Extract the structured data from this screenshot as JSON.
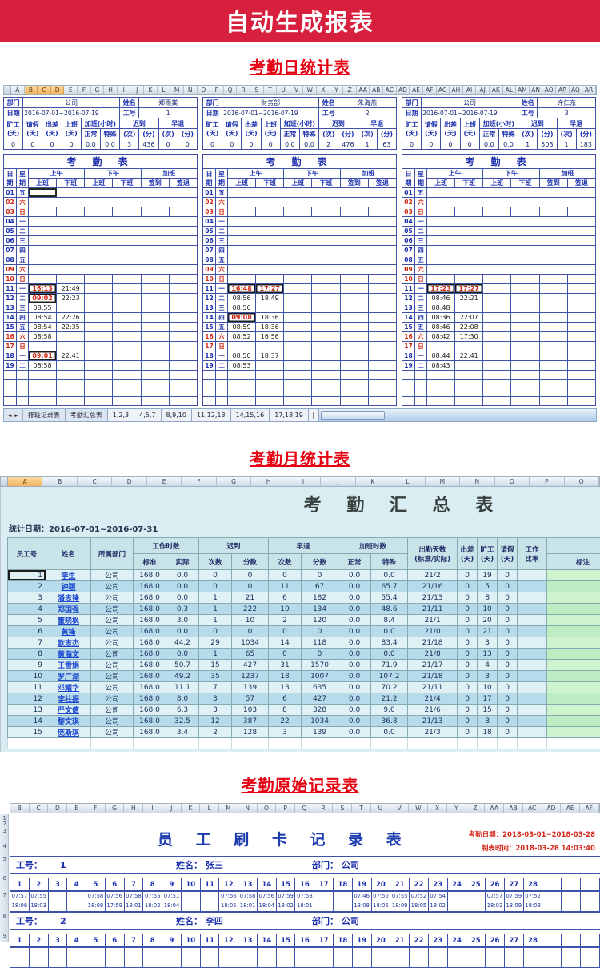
{
  "banner": {
    "title": "自动生成报表"
  },
  "colors": {
    "banner_red": "#d6203e",
    "section_title_red": "#e60012",
    "grid_navy": "#3f51a5",
    "label_blue": "#1b2fae",
    "late_red": "#d02614",
    "link_blue": "#1a46cf",
    "monthly_bg": "#d9edf2",
    "note_green": "#cdf4cf",
    "raw_red": "#d42a1e"
  },
  "daily": {
    "section_title": "考勤日统计表",
    "columns": [
      "A",
      "B",
      "C",
      "D",
      "E",
      "F",
      "G",
      "H",
      "I",
      "J",
      "K",
      "L",
      "M",
      "N",
      "O",
      "P",
      "Q",
      "R",
      "S",
      "T",
      "U",
      "V",
      "W",
      "X",
      "Y",
      "Z",
      "AA",
      "AB",
      "AC",
      "AD",
      "AE",
      "AF",
      "AG",
      "AH",
      "AI",
      "AJ",
      "AK",
      "AL",
      "AM",
      "AN",
      "AO",
      "AP",
      "AQ",
      "AR"
    ],
    "highlighted_columns": [
      "B",
      "C",
      "D"
    ],
    "labels": {
      "dept": "部门",
      "name": "姓名",
      "date": "日期",
      "emp_id": "工号",
      "stat_singles": [
        [
          "旷工",
          "(天)"
        ],
        [
          "请假",
          "(天)"
        ],
        [
          "出差",
          "(天)"
        ],
        [
          "上班",
          "(天)"
        ]
      ],
      "stat_groups": [
        {
          "label": "加班(小时)",
          "subs": [
            "正常",
            "特殊"
          ]
        },
        {
          "label": "迟到",
          "subs": [
            "(次)",
            "(分)"
          ]
        },
        {
          "label": "早退",
          "subs": [
            "(次)",
            "(分)"
          ]
        }
      ]
    },
    "attendance": {
      "title": "考 勤 表",
      "day_col": [
        "日",
        "期"
      ],
      "week_col": [
        "星",
        "期"
      ],
      "groups": [
        {
          "label": "上午",
          "subs": [
            "上班",
            "下班"
          ]
        },
        {
          "label": "下午",
          "subs": [
            "上班",
            "下班"
          ]
        },
        {
          "label": "加班",
          "subs": [
            "签到",
            "签退"
          ]
        }
      ],
      "days": [
        {
          "d": "01",
          "w": "五",
          "red": false,
          "grid": false
        },
        {
          "d": "02",
          "w": "六",
          "red": true,
          "grid": false
        },
        {
          "d": "03",
          "w": "日",
          "red": true,
          "grid": true
        },
        {
          "d": "04",
          "w": "一",
          "red": false,
          "grid": false
        },
        {
          "d": "05",
          "w": "二",
          "red": false,
          "grid": false
        },
        {
          "d": "06",
          "w": "三",
          "red": false,
          "grid": false
        },
        {
          "d": "07",
          "w": "四",
          "red": false,
          "grid": false
        },
        {
          "d": "08",
          "w": "五",
          "red": false,
          "grid": false
        },
        {
          "d": "09",
          "w": "六",
          "red": true,
          "grid": false
        },
        {
          "d": "10",
          "w": "日",
          "red": true,
          "grid": true
        },
        {
          "d": "11",
          "w": "一",
          "red": false,
          "grid": true
        },
        {
          "d": "12",
          "w": "二",
          "red": false,
          "grid": true
        },
        {
          "d": "13",
          "w": "三",
          "red": false,
          "grid": true
        },
        {
          "d": "14",
          "w": "四",
          "red": false,
          "grid": true
        },
        {
          "d": "15",
          "w": "五",
          "red": false,
          "grid": true
        },
        {
          "d": "16",
          "w": "六",
          "red": true,
          "grid": true
        },
        {
          "d": "17",
          "w": "日",
          "red": true,
          "grid": true
        },
        {
          "d": "18",
          "w": "一",
          "red": false,
          "grid": true
        },
        {
          "d": "19",
          "w": "二",
          "red": false,
          "grid": true
        }
      ],
      "empty_rows": 4
    },
    "panels": [
      {
        "dept": "公司",
        "name": "郑雨棠",
        "date": "2016-07-01~2016-07-19",
        "emp_id": "1",
        "stats": [
          "0",
          "0",
          "0",
          "0",
          "0.0",
          "0.0",
          "3",
          "436",
          "0",
          "0"
        ],
        "active_cell": true,
        "times": {
          "11": [
            "16:13*",
            "21:49"
          ],
          "12": [
            "09:02*",
            "22:23"
          ],
          "13": [
            "08:55",
            ""
          ],
          "14": [
            "08:54",
            "22:26"
          ],
          "15": [
            "08:54",
            "22:35"
          ],
          "16": [
            "08:58",
            ""
          ],
          "18": [
            "09:01*",
            "22:41"
          ],
          "19": [
            "08:58",
            ""
          ]
        }
      },
      {
        "dept": "财务部",
        "name": "朱海燕",
        "date": "2016-07-01~2016-07-19",
        "emp_id": "2",
        "stats": [
          "0",
          "0",
          "0",
          "0",
          "0.0",
          "0.0",
          "2",
          "476",
          "1",
          "63"
        ],
        "active_cell": false,
        "times": {
          "11": [
            "16:48*",
            "17:27*"
          ],
          "12": [
            "08:56",
            "18:49"
          ],
          "13": [
            "08:56",
            ""
          ],
          "14": [
            "09:08*",
            "18:36"
          ],
          "15": [
            "08:59",
            "18:36"
          ],
          "16": [
            "08:52",
            "16:56"
          ],
          "18": [
            "08:50",
            "18:37"
          ],
          "19": [
            "08:53",
            ""
          ]
        }
      },
      {
        "dept": "公司",
        "name": "许仁东",
        "date": "2016-07-01~2016-07-19",
        "emp_id": "3",
        "stats": [
          "0",
          "0",
          "0",
          "0",
          "0.0",
          "0.0",
          "1",
          "503",
          "1",
          "183"
        ],
        "active_cell": false,
        "times": {
          "11": [
            "17:23*",
            "17:27*"
          ],
          "12": [
            "08:46",
            "22:21"
          ],
          "13": [
            "08:48",
            ""
          ],
          "14": [
            "08:36",
            "22:07"
          ],
          "15": [
            "08:46",
            "22:08"
          ],
          "16": [
            "08:42",
            "17:30"
          ],
          "18": [
            "08:44",
            "22:41"
          ],
          "19": [
            "08:43",
            ""
          ]
        }
      }
    ],
    "sheet_tabs": {
      "nav_icons": [
        "◄",
        "►"
      ],
      "tabs": [
        "排班记录表",
        "考勤汇总表",
        "1,2,3",
        "4,5,7",
        "8,9,10",
        "11,12,13",
        "14,15,16",
        "17,18,19"
      ]
    }
  },
  "monthly": {
    "section_title": "考勤月统计表",
    "columns": [
      "A",
      "B",
      "C",
      "D",
      "E",
      "F",
      "G",
      "H",
      "I",
      "J",
      "K",
      "L",
      "M",
      "N",
      "O",
      "P",
      "Q"
    ],
    "highlighted_columns": [
      "A"
    ],
    "title": "考 勤 汇 总 表",
    "stat_date": "统计日期：2016-07-01~2016-07-31",
    "header": {
      "emp_id": "员工号",
      "name": "姓名",
      "dept": "所属部门",
      "groups": [
        {
          "label": "工作时数",
          "subs": [
            "标准",
            "实际"
          ]
        },
        {
          "label": "迟到",
          "subs": [
            "次数",
            "分数"
          ]
        },
        {
          "label": "早退",
          "subs": [
            "次数",
            "分数"
          ]
        },
        {
          "label": "加班时数",
          "subs": [
            "正常",
            "特殊"
          ]
        }
      ],
      "attendance_days": [
        "出勤天数",
        "(标准/实际)"
      ],
      "trip": [
        "出差",
        "(天)"
      ],
      "absent": [
        "旷工",
        "(天)"
      ],
      "leave": [
        "请假",
        "(天)"
      ],
      "ratio": [
        "工作",
        "比率"
      ],
      "note": "标注"
    },
    "rows": [
      [
        "1",
        "李生",
        "公司",
        "168.0",
        "0.0",
        "0",
        "0",
        "0",
        "0",
        "0.0",
        "0.0",
        "21/2",
        "0",
        "19",
        "0"
      ],
      [
        "2",
        "钟颖",
        "公司",
        "168.0",
        "0.0",
        "0",
        "0",
        "11",
        "67",
        "0.0",
        "65.7",
        "21/16",
        "0",
        "5",
        "0"
      ],
      [
        "3",
        "潘志锋",
        "公司",
        "168.0",
        "0.0",
        "1",
        "21",
        "6",
        "182",
        "0.0",
        "55.4",
        "21/13",
        "0",
        "8",
        "0"
      ],
      [
        "4",
        "郑国强",
        "公司",
        "168.0",
        "0.3",
        "1",
        "222",
        "10",
        "134",
        "0.0",
        "48.6",
        "21/11",
        "0",
        "10",
        "0"
      ],
      [
        "5",
        "董晓枫",
        "公司",
        "168.0",
        "3.0",
        "1",
        "10",
        "2",
        "120",
        "0.0",
        "8.4",
        "21/1",
        "0",
        "20",
        "0"
      ],
      [
        "6",
        "黄锋",
        "公司",
        "168.0",
        "0.0",
        "0",
        "0",
        "0",
        "0",
        "0.0",
        "0.0",
        "21/0",
        "0",
        "21",
        "0"
      ],
      [
        "7",
        "欧志杰",
        "公司",
        "168.0",
        "44.2",
        "29",
        "1034",
        "14",
        "118",
        "0.0",
        "83.4",
        "21/18",
        "0",
        "3",
        "0"
      ],
      [
        "8",
        "黄海文",
        "公司",
        "168.0",
        "0.0",
        "1",
        "65",
        "0",
        "0",
        "0.0",
        "0.0",
        "21/8",
        "0",
        "13",
        "0"
      ],
      [
        "9",
        "王雪娟",
        "公司",
        "168.0",
        "50.7",
        "15",
        "427",
        "31",
        "1570",
        "0.0",
        "71.9",
        "21/17",
        "0",
        "4",
        "0"
      ],
      [
        "10",
        "罗广湖",
        "公司",
        "168.0",
        "49.2",
        "35",
        "1237",
        "18",
        "1007",
        "0.0",
        "107.2",
        "21/18",
        "0",
        "3",
        "0"
      ],
      [
        "11",
        "邓耀华",
        "公司",
        "168.0",
        "11.1",
        "7",
        "139",
        "13",
        "635",
        "0.0",
        "70.2",
        "21/11",
        "0",
        "10",
        "0"
      ],
      [
        "12",
        "李柱振",
        "公司",
        "168.0",
        "8.0",
        "3",
        "57",
        "6",
        "427",
        "0.0",
        "21.2",
        "21/4",
        "0",
        "17",
        "0"
      ],
      [
        "13",
        "严文倩",
        "公司",
        "168.0",
        "6.3",
        "3",
        "103",
        "8",
        "328",
        "0.0",
        "9.0",
        "21/6",
        "0",
        "15",
        "0"
      ],
      [
        "14",
        "黎文琪",
        "公司",
        "168.0",
        "32.5",
        "12",
        "387",
        "22",
        "1034",
        "0.0",
        "36.8",
        "21/13",
        "0",
        "8",
        "0"
      ],
      [
        "15",
        "庞斯琪",
        "公司",
        "168.0",
        "3.4",
        "2",
        "128",
        "3",
        "139",
        "0.0",
        "0.0",
        "21/3",
        "0",
        "18",
        "0"
      ]
    ]
  },
  "raw": {
    "section_title": "考勤原始记录表",
    "columns": [
      "B",
      "C",
      "D",
      "E",
      "F",
      "G",
      "H",
      "I",
      "J",
      "K",
      "L",
      "M",
      "N",
      "O",
      "P",
      "Q",
      "R",
      "S",
      "T",
      "U",
      "V",
      "W",
      "X",
      "Y",
      "Z",
      "AA",
      "AB",
      "AC",
      "AD",
      "AE",
      "AF"
    ],
    "row_numbers": [
      "1",
      "2",
      "3",
      "4",
      "5",
      "6",
      "7",
      "8",
      "9"
    ],
    "title": "员 工 刷 卡 记 录 表",
    "date_line": "考勤日期：2018-03-01~2018-03-28",
    "made_line": "制表时间：2018-03-28 14:03:40",
    "labels": {
      "emp": "工号：",
      "name": "姓名：",
      "dept": "部门："
    },
    "day_headers": [
      "1",
      "2",
      "3",
      "4",
      "5",
      "6",
      "7",
      "8",
      "9",
      "10",
      "11",
      "12",
      "13",
      "14",
      "15",
      "16",
      "17",
      "18",
      "19",
      "20",
      "21",
      "22",
      "23",
      "24",
      "25",
      "26",
      "27",
      "28",
      "",
      "",
      ""
    ],
    "employees": [
      {
        "id": "1",
        "name": "张三",
        "dept": "公司",
        "times": [
          [
            "07:57",
            "18:06"
          ],
          [
            "07:55",
            "18:03"
          ],
          [
            "",
            ""
          ],
          [
            "",
            ""
          ],
          [
            "07:58",
            "18:08"
          ],
          [
            "07:56",
            "17:59"
          ],
          [
            "07:58",
            "18:01"
          ],
          [
            "07:55",
            "18:02"
          ],
          [
            "07:51",
            "18:04"
          ],
          [
            "",
            ""
          ],
          [
            "",
            ""
          ],
          [
            "07:56",
            "18:05"
          ],
          [
            "07:58",
            "18:01"
          ],
          [
            "07:56",
            "18:04"
          ],
          [
            "07:59",
            "18:02"
          ],
          [
            "07:58",
            "18:01"
          ],
          [
            "",
            ""
          ],
          [
            "",
            ""
          ],
          [
            "07:46",
            "18:08"
          ],
          [
            "07:50",
            "18:06"
          ],
          [
            "07:55",
            "18:09"
          ],
          [
            "07:52",
            "18:05"
          ],
          [
            "07:54",
            "18:02"
          ],
          [
            "",
            ""
          ],
          [
            "",
            ""
          ],
          [
            "07:57",
            "18:02"
          ],
          [
            "07:59",
            "18:09"
          ],
          [
            "07:52",
            "18:08"
          ],
          [
            "",
            ""
          ],
          [
            "",
            ""
          ],
          [
            "",
            ""
          ]
        ]
      },
      {
        "id": "2",
        "name": "李四",
        "dept": "公司",
        "times": []
      }
    ]
  }
}
